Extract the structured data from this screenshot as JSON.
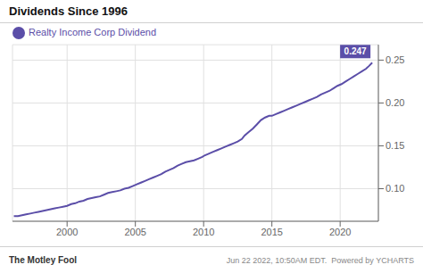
{
  "chart_data": {
    "type": "line",
    "title": "Dividends Since 1996",
    "x": [
      1996.1,
      1996.4,
      1996.7,
      1997.0,
      1997.3,
      1997.6,
      1997.9,
      1998.2,
      1998.5,
      1998.8,
      1999.1,
      1999.4,
      1999.7,
      2000.0,
      2000.3,
      2000.6,
      2000.9,
      2001.2,
      2001.5,
      2001.8,
      2002.1,
      2002.4,
      2002.7,
      2003.0,
      2003.3,
      2003.6,
      2003.9,
      2004.2,
      2004.5,
      2004.8,
      2005.1,
      2005.4,
      2005.7,
      2006.0,
      2006.3,
      2006.6,
      2006.9,
      2007.2,
      2007.5,
      2007.8,
      2008.1,
      2008.4,
      2008.7,
      2009.0,
      2009.3,
      2009.6,
      2009.9,
      2010.1,
      2010.4,
      2010.7,
      2011.0,
      2011.3,
      2011.6,
      2011.9,
      2012.2,
      2012.5,
      2012.8,
      2013.0,
      2013.3,
      2013.6,
      2013.9,
      2014.2,
      2014.5,
      2014.8,
      2015.0,
      2015.3,
      2015.6,
      2015.9,
      2016.2,
      2016.5,
      2016.8,
      2017.1,
      2017.4,
      2017.7,
      2018.0,
      2018.3,
      2018.6,
      2018.9,
      2019.2,
      2019.5,
      2019.8,
      2020.1,
      2020.4,
      2020.7,
      2021.0,
      2021.3,
      2021.6,
      2021.9,
      2022.1,
      2022.35
    ],
    "series": [
      {
        "name": "Realty Income Corp Dividend",
        "color": "#5b4ea8",
        "values": [
          0.068,
          0.068,
          0.069,
          0.07,
          0.071,
          0.072,
          0.073,
          0.074,
          0.075,
          0.076,
          0.077,
          0.078,
          0.079,
          0.08,
          0.082,
          0.083,
          0.085,
          0.086,
          0.088,
          0.089,
          0.09,
          0.091,
          0.093,
          0.095,
          0.096,
          0.097,
          0.098,
          0.1,
          0.101,
          0.103,
          0.105,
          0.107,
          0.109,
          0.111,
          0.113,
          0.115,
          0.117,
          0.12,
          0.122,
          0.124,
          0.127,
          0.129,
          0.131,
          0.132,
          0.133,
          0.135,
          0.137,
          0.139,
          0.141,
          0.143,
          0.145,
          0.147,
          0.149,
          0.151,
          0.153,
          0.155,
          0.158,
          0.162,
          0.166,
          0.17,
          0.175,
          0.18,
          0.183,
          0.185,
          0.185,
          0.187,
          0.189,
          0.191,
          0.193,
          0.195,
          0.197,
          0.199,
          0.201,
          0.203,
          0.205,
          0.207,
          0.21,
          0.212,
          0.214,
          0.217,
          0.22,
          0.222,
          0.225,
          0.228,
          0.231,
          0.234,
          0.237,
          0.24,
          0.243,
          0.247
        ]
      }
    ],
    "xlim": [
      1996.0,
      2022.8
    ],
    "xticks": [
      2000,
      2005,
      2010,
      2015,
      2020
    ],
    "ylim": [
      0.062,
      0.268
    ],
    "yticks": [
      {
        "value": 0.1,
        "label": "0.10"
      },
      0.15,
      {
        "value": 0.2,
        "label": "0.20"
      },
      0.25
    ],
    "grid": true,
    "legend": "top",
    "annotations": [
      {
        "text": "0.247",
        "x": 2022.35,
        "y": 0.247,
        "color": "#5b4ea8"
      }
    ],
    "footer": [
      "The Motley Fool",
      "Jun 22 2022, 10:50AM EDT.  Powered by YCHARTS"
    ]
  }
}
